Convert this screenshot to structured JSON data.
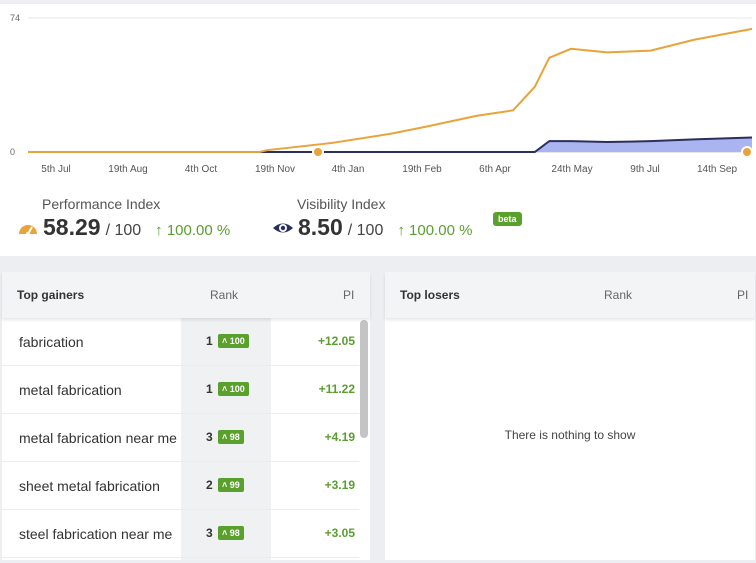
{
  "chart_data": {
    "type": "line",
    "x_ticks": [
      "5th Jul",
      "19th Aug",
      "4th Oct",
      "19th Nov",
      "4th Jan",
      "19th Feb",
      "6th Apr",
      "24th May",
      "9th Jul",
      "14th Sep"
    ],
    "y_tick_labels": [
      "74",
      "0"
    ],
    "ylim": [
      0,
      74
    ],
    "grid": "horizontal",
    "series": [
      {
        "color": "#e8a33a",
        "fill": "none",
        "x_positions": [
          0,
          0.32,
          0.33,
          0.42,
          0.5,
          0.55,
          0.62,
          0.67,
          0.7,
          0.72,
          0.75,
          0.8,
          0.86,
          0.92,
          1.0
        ],
        "values": [
          0,
          0,
          1,
          5,
          10,
          14,
          20,
          23,
          36,
          52,
          57,
          55,
          56,
          62,
          68
        ]
      },
      {
        "color": "#2a2f5c",
        "fill": "#aab4f0",
        "x_positions": [
          0,
          0.7,
          0.72,
          0.75,
          0.8,
          0.86,
          0.92,
          1.0
        ],
        "values": [
          0,
          0,
          6,
          6,
          5.5,
          6,
          7,
          8
        ]
      }
    ]
  },
  "metrics": {
    "performance": {
      "label": "Performance Index",
      "value": "58.29",
      "out_of": "/ 100",
      "change": "100.00 %",
      "icon": "speedometer-icon"
    },
    "visibility": {
      "label": "Visibility Index",
      "value": "8.50",
      "out_of": "/ 100",
      "change": "100.00 %",
      "icon": "eye-icon",
      "badge": "beta"
    }
  },
  "gainers": {
    "title": "Top gainers",
    "col_rank": "Rank",
    "col_pi": "PI",
    "rows": [
      {
        "keyword": "fabrication",
        "rank": "1",
        "badge": "100",
        "pi": "+12.05"
      },
      {
        "keyword": "metal fabrication",
        "rank": "1",
        "badge": "100",
        "pi": "+11.22"
      },
      {
        "keyword": "metal fabrication near me",
        "rank": "3",
        "badge": "98",
        "pi": "+4.19"
      },
      {
        "keyword": "sheet metal fabrication",
        "rank": "2",
        "badge": "99",
        "pi": "+3.19"
      },
      {
        "keyword": "steel fabrication near me",
        "rank": "3",
        "badge": "98",
        "pi": "+3.05"
      }
    ]
  },
  "losers": {
    "title": "Top losers",
    "col_rank": "Rank",
    "col_pi": "PI",
    "empty_text": "There is nothing to show"
  },
  "colors": {
    "accent_green": "#5aa02c",
    "orange": "#e8a33a",
    "navy": "#2a2f5c"
  }
}
